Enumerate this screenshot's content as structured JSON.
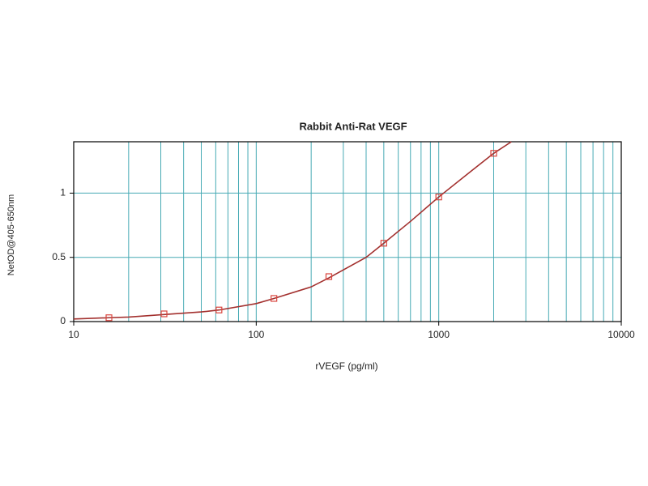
{
  "chart_data": {
    "type": "scatter",
    "title": "Rabbit Anti-Rat VEGF",
    "x_label": "rVEGF (pg/ml)",
    "y_label": "NetOD@405-650nm",
    "xscale": "log",
    "xlim": [
      10,
      10000
    ],
    "xticks": [
      10,
      100,
      1000,
      10000
    ],
    "xminorticks": [
      20,
      30,
      40,
      50,
      60,
      70,
      80,
      90,
      200,
      300,
      400,
      500,
      600,
      700,
      800,
      900,
      2000,
      3000,
      4000,
      5000,
      6000,
      7000,
      8000,
      9000
    ],
    "ylim": [
      0,
      1.4
    ],
    "yticks": [
      0,
      0.5,
      1
    ],
    "grid": true,
    "grid_color": "#46aab4",
    "series": [
      {
        "style": "line",
        "color": "#a3302e",
        "x": [
          10,
          15.6,
          20,
          31.25,
          50,
          62.5,
          100,
          125,
          200,
          250,
          400,
          500,
          700,
          1000,
          1500,
          2000,
          2500
        ],
        "values": [
          0.02,
          0.03,
          0.035,
          0.055,
          0.075,
          0.09,
          0.14,
          0.18,
          0.27,
          0.34,
          0.5,
          0.61,
          0.78,
          0.97,
          1.17,
          1.31,
          1.4
        ]
      },
      {
        "style": "marker",
        "color": "#d8443c",
        "x": [
          15.6,
          31.25,
          62.5,
          125,
          250,
          500,
          1000,
          2000
        ],
        "values": [
          0.03,
          0.06,
          0.09,
          0.18,
          0.35,
          0.61,
          0.97,
          1.31
        ]
      }
    ]
  }
}
